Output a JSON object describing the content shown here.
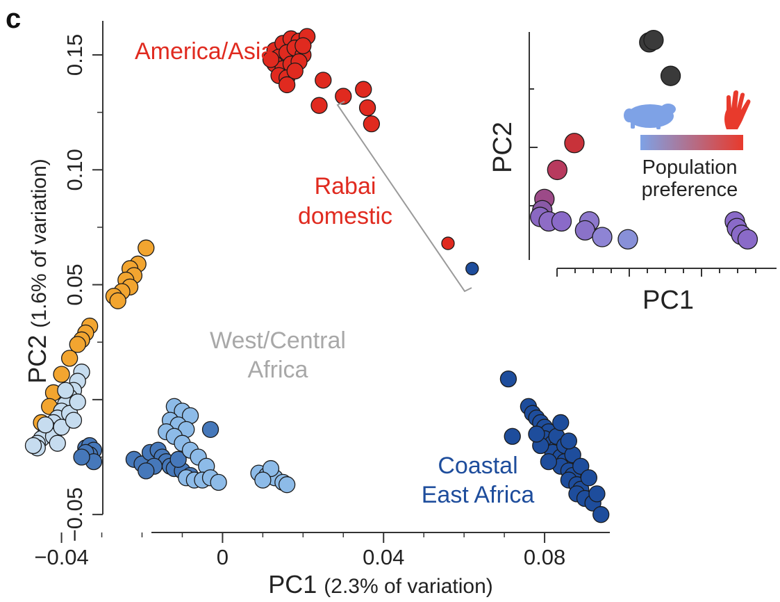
{
  "panel_label": "c",
  "chart_data": [
    {
      "type": "scatter",
      "title": "",
      "xlabel_main": "PC1",
      "xlabel_sub": "(2.3% of variation)",
      "ylabel_main": "PC2",
      "ylabel_sub": "(1.6% of variation)",
      "xlim": [
        -0.047,
        0.1
      ],
      "ylim": [
        -0.056,
        0.163
      ],
      "xticks": [
        -0.04,
        0,
        0.04,
        0.08
      ],
      "xtick_labels": [
        "−0.04",
        "0",
        "0.04",
        "0.08"
      ],
      "yticks": [
        -0.05,
        0,
        0.05,
        0.1,
        0.15
      ],
      "ytick_labels": [
        "−0.05",
        "0",
        "0.05",
        "0.10",
        "0.15"
      ],
      "annotations": [
        {
          "text": "America/Asia",
          "color": "#e02a1f"
        },
        {
          "text": "Rabai",
          "color": "#e02a1f"
        },
        {
          "text": "domestic",
          "color": "#e02a1f"
        },
        {
          "text": "West/Central",
          "color": "#a8a8a8"
        },
        {
          "text": "Africa",
          "color": "#a8a8a8"
        },
        {
          "text": "Coastal",
          "color": "#1e4d9c"
        },
        {
          "text": "East Africa",
          "color": "#1e4d9c"
        }
      ],
      "series": [
        {
          "group": "America/Asia",
          "color": "#e02a1f",
          "points": [
            [
              0.013,
              0.152
            ],
            [
              0.015,
              0.155
            ],
            [
              0.017,
              0.157
            ],
            [
              0.019,
              0.156
            ],
            [
              0.021,
              0.158
            ],
            [
              0.014,
              0.149
            ],
            [
              0.016,
              0.151
            ],
            [
              0.018,
              0.153
            ],
            [
              0.02,
              0.15
            ],
            [
              0.013,
              0.146
            ],
            [
              0.015,
              0.144
            ],
            [
              0.017,
              0.146
            ],
            [
              0.019,
              0.147
            ],
            [
              0.014,
              0.141
            ],
            [
              0.016,
              0.14
            ],
            [
              0.018,
              0.143
            ],
            [
              0.016,
              0.137
            ],
            [
              0.012,
              0.148
            ],
            [
              0.02,
              0.154
            ],
            [
              0.025,
              0.139
            ],
            [
              0.03,
              0.132
            ],
            [
              0.035,
              0.135
            ],
            [
              0.036,
              0.127
            ],
            [
              0.037,
              0.12
            ],
            [
              0.024,
              0.128
            ]
          ]
        },
        {
          "group": "Rabai domestic",
          "color": "#e02a1f",
          "points": [
            [
              0.056,
              0.068
            ]
          ]
        },
        {
          "group": "Rabai domestic",
          "color": "#1e4d9c",
          "points": [
            [
              0.062,
              0.057
            ]
          ]
        },
        {
          "group": "West/Central Africa (orange)",
          "color": "#f2a530",
          "points": [
            [
              -0.019,
              0.066
            ],
            [
              -0.021,
              0.059
            ],
            [
              -0.023,
              0.057
            ],
            [
              -0.022,
              0.054
            ],
            [
              -0.024,
              0.052
            ],
            [
              -0.023,
              0.049
            ],
            [
              -0.025,
              0.047
            ],
            [
              -0.027,
              0.045
            ],
            [
              -0.026,
              0.043
            ],
            [
              -0.033,
              0.032
            ],
            [
              -0.034,
              0.029
            ],
            [
              -0.035,
              0.026
            ],
            [
              -0.036,
              0.024
            ],
            [
              -0.038,
              0.018
            ],
            [
              -0.04,
              0.011
            ],
            [
              -0.042,
              0.003
            ],
            [
              -0.043,
              -0.003
            ],
            [
              -0.045,
              -0.01
            ]
          ]
        },
        {
          "group": "West/Central Africa (light blue)",
          "color": "#c6dcef",
          "points": [
            [
              -0.035,
              0.012
            ],
            [
              -0.036,
              0.008
            ],
            [
              -0.037,
              0.004
            ],
            [
              -0.038,
              0.001
            ],
            [
              -0.039,
              -0.002
            ],
            [
              -0.04,
              -0.005
            ],
            [
              -0.041,
              -0.008
            ],
            [
              -0.042,
              -0.01
            ],
            [
              -0.043,
              -0.013
            ],
            [
              -0.044,
              -0.015
            ],
            [
              -0.045,
              -0.017
            ],
            [
              -0.046,
              -0.019
            ],
            [
              -0.046,
              -0.021
            ],
            [
              -0.047,
              -0.02
            ],
            [
              -0.042,
              -0.016
            ],
            [
              -0.04,
              -0.012
            ],
            [
              -0.038,
              -0.006
            ],
            [
              -0.036,
              -0.001
            ],
            [
              -0.041,
              -0.019
            ],
            [
              -0.044,
              -0.011
            ],
            [
              -0.039,
              0.004
            ],
            [
              -0.037,
              -0.009
            ]
          ]
        },
        {
          "group": "Coastal East Africa (mid blue)",
          "color": "#4678ba",
          "points": [
            [
              -0.034,
              -0.021
            ],
            [
              -0.033,
              -0.02
            ],
            [
              -0.032,
              -0.022
            ],
            [
              -0.033,
              -0.024
            ],
            [
              -0.034,
              -0.023
            ],
            [
              -0.032,
              -0.027
            ],
            [
              -0.035,
              -0.025
            ],
            [
              -0.022,
              -0.026
            ],
            [
              -0.02,
              -0.028
            ],
            [
              -0.018,
              -0.023
            ],
            [
              -0.016,
              -0.022
            ],
            [
              -0.015,
              -0.025
            ],
            [
              -0.014,
              -0.027
            ],
            [
              -0.013,
              -0.029
            ],
            [
              -0.012,
              -0.03
            ],
            [
              -0.01,
              -0.031
            ],
            [
              -0.008,
              -0.033
            ],
            [
              -0.017,
              -0.029
            ],
            [
              -0.019,
              -0.031
            ],
            [
              -0.011,
              -0.026
            ],
            [
              -0.003,
              -0.013
            ]
          ]
        },
        {
          "group": "Coastal East Africa (light blue)",
          "color": "#8dbbe8",
          "points": [
            [
              -0.012,
              -0.003
            ],
            [
              -0.01,
              -0.005
            ],
            [
              -0.008,
              -0.007
            ],
            [
              -0.013,
              -0.009
            ],
            [
              -0.011,
              -0.011
            ],
            [
              -0.009,
              -0.013
            ],
            [
              -0.014,
              -0.014
            ],
            [
              -0.012,
              -0.016
            ],
            [
              -0.01,
              -0.019
            ],
            [
              -0.008,
              -0.022
            ],
            [
              -0.006,
              -0.025
            ],
            [
              -0.004,
              -0.029
            ],
            [
              -0.009,
              -0.034
            ],
            [
              -0.007,
              -0.035
            ],
            [
              -0.005,
              -0.035
            ],
            [
              -0.003,
              -0.034
            ],
            [
              -0.001,
              -0.036
            ],
            [
              0.009,
              -0.032
            ],
            [
              0.011,
              -0.033
            ],
            [
              0.013,
              -0.034
            ],
            [
              0.015,
              -0.036
            ],
            [
              0.016,
              -0.037
            ],
            [
              0.012,
              -0.03
            ],
            [
              0.01,
              -0.035
            ]
          ]
        },
        {
          "group": "Coastal East Africa (dark blue)",
          "color": "#1e4d9c",
          "points": [
            [
              0.071,
              0.009
            ],
            [
              0.072,
              -0.016
            ],
            [
              0.076,
              -0.003
            ],
            [
              0.077,
              -0.006
            ],
            [
              0.078,
              -0.008
            ],
            [
              0.079,
              -0.01
            ],
            [
              0.08,
              -0.012
            ],
            [
              0.081,
              -0.014
            ],
            [
              0.08,
              -0.017
            ],
            [
              0.082,
              -0.019
            ],
            [
              0.083,
              -0.021
            ],
            [
              0.082,
              -0.023
            ],
            [
              0.084,
              -0.025
            ],
            [
              0.085,
              -0.027
            ],
            [
              0.084,
              -0.029
            ],
            [
              0.086,
              -0.031
            ],
            [
              0.087,
              -0.033
            ],
            [
              0.086,
              -0.035
            ],
            [
              0.088,
              -0.037
            ],
            [
              0.089,
              -0.039
            ],
            [
              0.088,
              -0.041
            ],
            [
              0.09,
              -0.043
            ],
            [
              0.092,
              -0.045
            ],
            [
              0.094,
              -0.05
            ],
            [
              0.083,
              -0.016
            ],
            [
              0.085,
              -0.02
            ],
            [
              0.087,
              -0.024
            ],
            [
              0.081,
              -0.027
            ],
            [
              0.089,
              -0.029
            ],
            [
              0.091,
              -0.034
            ],
            [
              0.079,
              -0.02
            ],
            [
              0.093,
              -0.041
            ],
            [
              0.084,
              -0.01
            ],
            [
              0.078,
              -0.015
            ],
            [
              0.086,
              -0.018
            ]
          ]
        }
      ]
    },
    {
      "type": "scatter",
      "title": "",
      "xlabel": "PC1",
      "ylabel": "PC2",
      "xlim": [
        0,
        10
      ],
      "ylim": [
        0,
        10
      ],
      "legend_title_1": "Population",
      "legend_title_2": "preference",
      "legend_icons": [
        "guinea-pig-icon",
        "hand-icon"
      ],
      "gradient_colors": [
        "#7ea2e6",
        "#e83a2c"
      ],
      "points": [
        {
          "x": 4.7,
          "y": 9.6,
          "color": "#3a3a3a"
        },
        {
          "x": 4.9,
          "y": 9.7,
          "color": "#3a3a3a"
        },
        {
          "x": 5.7,
          "y": 8.1,
          "color": "#3a3a3a"
        },
        {
          "x": 1.2,
          "y": 5.1,
          "color": "#c8323a"
        },
        {
          "x": 0.4,
          "y": 3.9,
          "color": "#b83a5e"
        },
        {
          "x": -0.2,
          "y": 2.6,
          "color": "#9c4a88"
        },
        {
          "x": -0.3,
          "y": 2.1,
          "color": "#8a5aa6"
        },
        {
          "x": -0.4,
          "y": 1.8,
          "color": "#8a68c2"
        },
        {
          "x": 0.0,
          "y": 1.6,
          "color": "#8e6cc6"
        },
        {
          "x": 0.6,
          "y": 1.6,
          "color": "#8a6ac8"
        },
        {
          "x": 1.9,
          "y": 1.6,
          "color": "#8d78cc"
        },
        {
          "x": 1.7,
          "y": 1.2,
          "color": "#8a72c8"
        },
        {
          "x": 2.5,
          "y": 0.9,
          "color": "#8e84d4"
        },
        {
          "x": 3.7,
          "y": 0.8,
          "color": "#8890d8"
        },
        {
          "x": 8.7,
          "y": 1.6,
          "color": "#8a6ac8"
        },
        {
          "x": 8.8,
          "y": 1.3,
          "color": "#8a6ac8"
        },
        {
          "x": 9.0,
          "y": 1.0,
          "color": "#8a6ac8"
        },
        {
          "x": 9.3,
          "y": 0.8,
          "color": "#8a6ac8"
        }
      ]
    }
  ]
}
